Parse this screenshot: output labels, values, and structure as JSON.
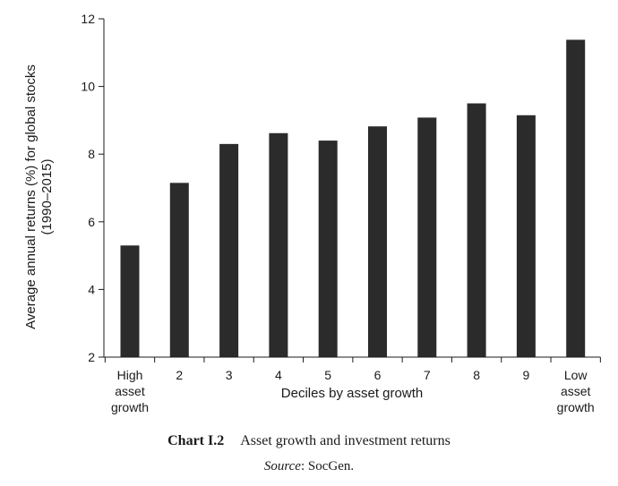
{
  "chart_data": {
    "type": "bar",
    "categories": [
      [
        "High",
        "asset",
        "growth"
      ],
      [
        "2"
      ],
      [
        "3"
      ],
      [
        "4"
      ],
      [
        "5"
      ],
      [
        "6"
      ],
      [
        "7"
      ],
      [
        "8"
      ],
      [
        "9"
      ],
      [
        "Low",
        "asset",
        "growth"
      ]
    ],
    "values": [
      5.3,
      7.15,
      8.3,
      8.62,
      8.4,
      8.82,
      9.08,
      9.5,
      9.15,
      11.38
    ],
    "ylim": [
      2,
      12
    ],
    "yticks": [
      2,
      4,
      6,
      8,
      10,
      12
    ],
    "ylabel_lines": [
      "Average annual returns (%) for global stocks",
      "(1990–2015)"
    ],
    "xlabel": "Deciles by asset growth",
    "bar_color": "#2b2b2b",
    "grid": false,
    "legend": "none"
  },
  "caption": {
    "number": "Chart I.2",
    "title": "Asset growth and investment returns",
    "source_label": "Source",
    "source_rest": ": SocGen."
  }
}
